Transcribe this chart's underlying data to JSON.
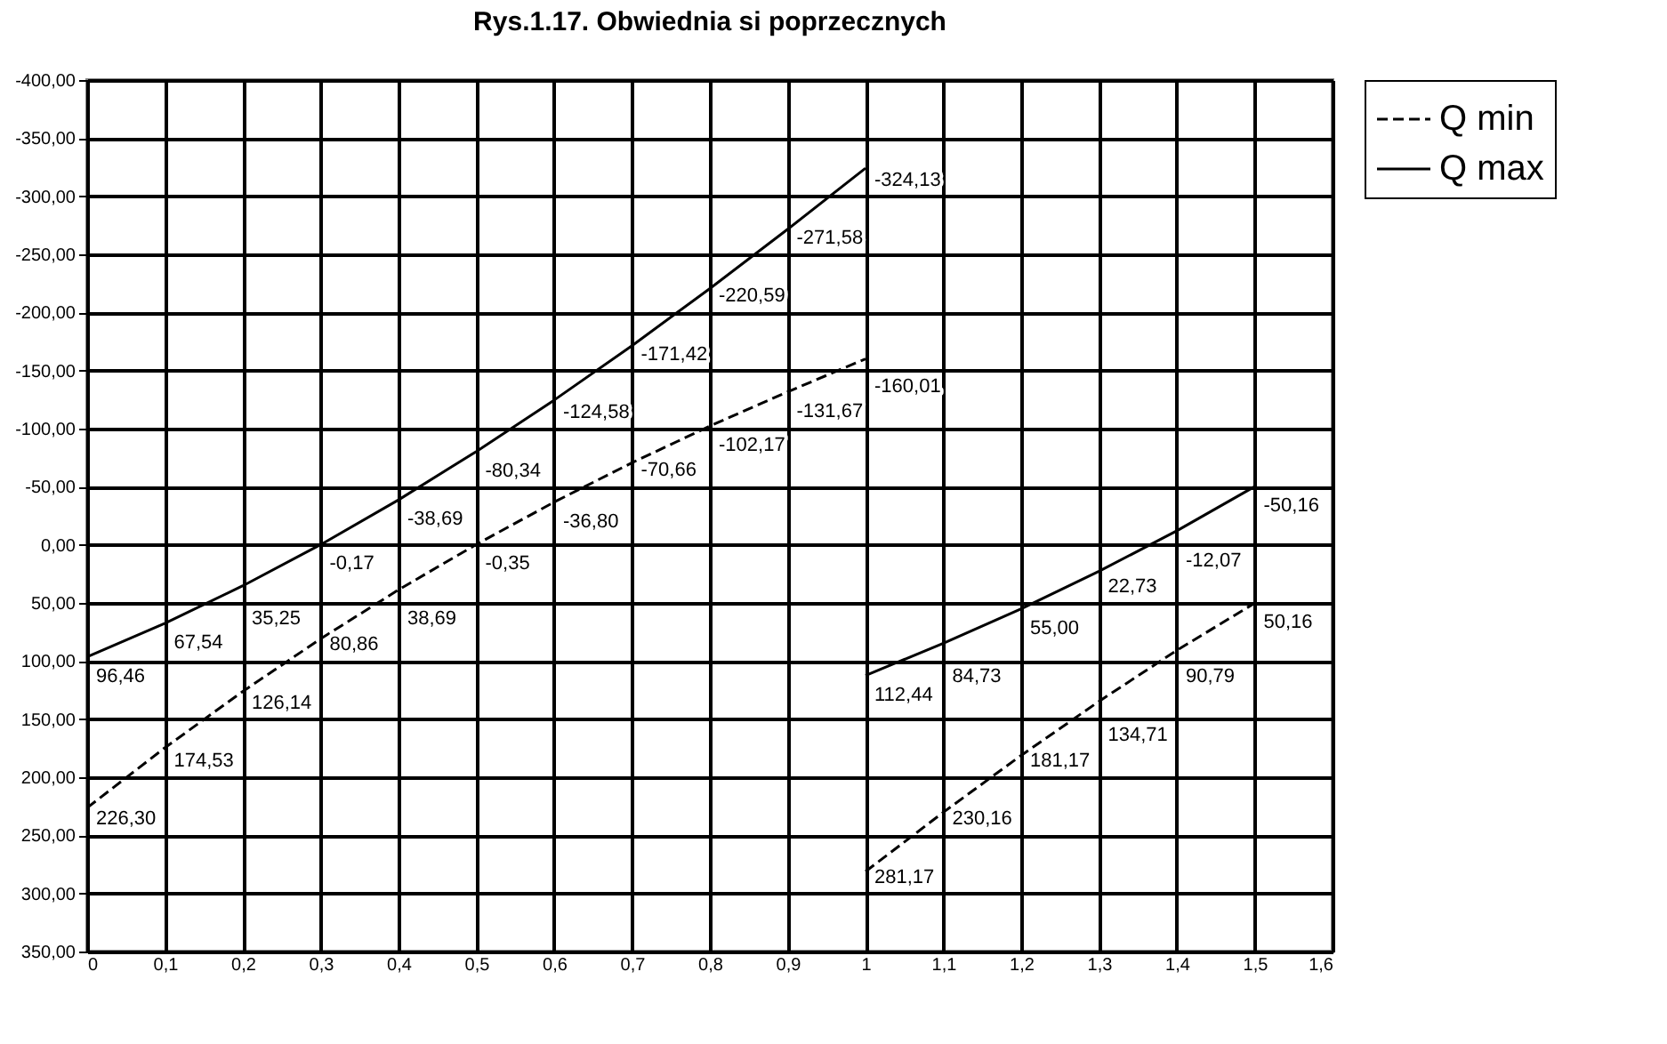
{
  "chart_data": {
    "type": "line",
    "title": "Rys.1.17. Obwiednia si  poprzecznych",
    "series": [
      {
        "name": "Q min",
        "color": "#000000",
        "line_style": "dashed",
        "x": [
          0,
          0.1,
          0.2,
          0.3,
          0.4,
          0.5,
          0.6,
          0.7,
          0.8,
          0.9,
          1,
          null,
          1,
          1.1,
          1.2,
          1.3,
          1.4,
          1.5
        ],
        "values": [
          226.3,
          174.53,
          126.14,
          80.86,
          38.69,
          -0.35,
          -36.8,
          -70.66,
          -102.17,
          -131.67,
          -160.01,
          null,
          281.17,
          230.16,
          181.17,
          134.71,
          90.79,
          50.16
        ],
        "value_labels": [
          "226,30",
          "174,53",
          "126,14",
          "80,86",
          "38,69",
          "-0,35",
          "-36,80",
          "-70,66",
          "-102,17",
          "-131,67",
          "-160,01",
          null,
          "281,17",
          "230,16",
          "181,17",
          "134,71",
          "90,79",
          "50,16"
        ]
      },
      {
        "name": "Q max",
        "color": "#000000",
        "line_style": "solid",
        "x": [
          0,
          0.1,
          0.2,
          0.3,
          0.4,
          0.5,
          0.6,
          0.7,
          0.8,
          0.9,
          1,
          null,
          1,
          1.1,
          1.2,
          1.3,
          1.4,
          1.5
        ],
        "values": [
          96.46,
          67.54,
          35.25,
          -0.17,
          -38.69,
          -80.34,
          -124.58,
          -171.42,
          -220.59,
          -271.58,
          -324.13,
          null,
          112.44,
          84.73,
          55.0,
          22.73,
          -12.07,
          -50.16
        ],
        "value_labels": [
          "96,46",
          "67,54",
          "35,25",
          "-0,17",
          "-38,69",
          "-80,34",
          "-124,58",
          "-171,42",
          "-220,59",
          "-271,58",
          "-324,13",
          null,
          "112,44",
          "84,73",
          "55,00",
          "22,73",
          "-12,07",
          "-50,16"
        ]
      }
    ],
    "xlim": [
      0,
      1.6
    ],
    "xticks": [
      {
        "value": 0,
        "label": "0"
      },
      {
        "value": 0.1,
        "label": "0,1"
      },
      {
        "value": 0.2,
        "label": "0,2"
      },
      {
        "value": 0.3,
        "label": "0,3"
      },
      {
        "value": 0.4,
        "label": "0,4"
      },
      {
        "value": 0.5,
        "label": "0,5"
      },
      {
        "value": 0.6,
        "label": "0,6"
      },
      {
        "value": 0.7,
        "label": "0,7"
      },
      {
        "value": 0.8,
        "label": "0,8"
      },
      {
        "value": 0.9,
        "label": "0,9"
      },
      {
        "value": 1,
        "label": "1"
      },
      {
        "value": 1.1,
        "label": "1,1"
      },
      {
        "value": 1.2,
        "label": "1,2"
      },
      {
        "value": 1.3,
        "label": "1,3"
      },
      {
        "value": 1.4,
        "label": "1,4"
      },
      {
        "value": 1.5,
        "label": "1,5"
      },
      {
        "value": 1.6,
        "label": "1,6"
      }
    ],
    "ylim": [
      350,
      -400
    ],
    "yticks": [
      {
        "value": -400,
        "label": "-400,00"
      },
      {
        "value": -350,
        "label": "-350,00"
      },
      {
        "value": -300,
        "label": "-300,00"
      },
      {
        "value": -250,
        "label": "-250,00"
      },
      {
        "value": -200,
        "label": "-200,00"
      },
      {
        "value": -150,
        "label": "-150,00"
      },
      {
        "value": -100,
        "label": "-100,00"
      },
      {
        "value": -50,
        "label": "-50,00"
      },
      {
        "value": 0,
        "label": "0,00"
      },
      {
        "value": 50,
        "label": "50,00"
      },
      {
        "value": 100,
        "label": "100,00"
      },
      {
        "value": 150,
        "label": "150,00"
      },
      {
        "value": 200,
        "label": "200,00"
      },
      {
        "value": 250,
        "label": "250,00"
      },
      {
        "value": 300,
        "label": "300,00"
      },
      {
        "value": 350,
        "label": "350,00"
      }
    ],
    "grid": true,
    "legend": "right",
    "marker": "none"
  }
}
